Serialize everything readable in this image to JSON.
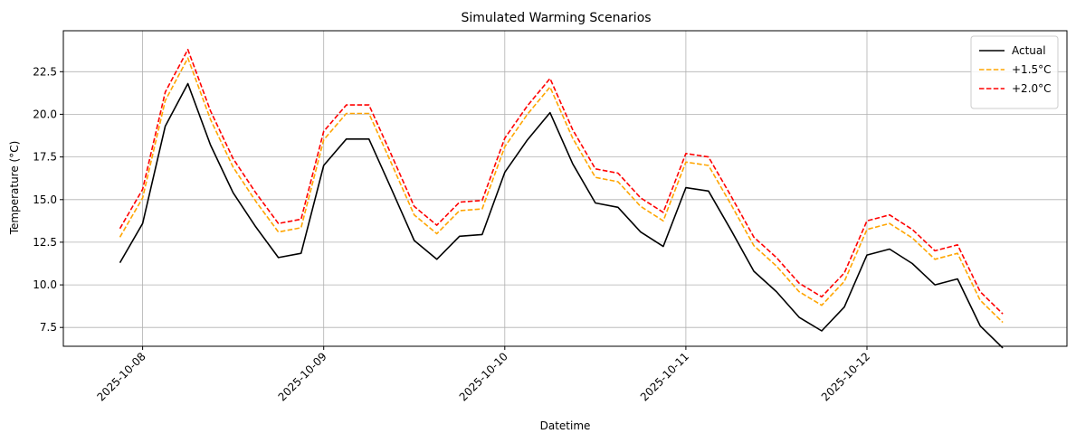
{
  "chart_data": {
    "type": "line",
    "title": "Simulated Warming Scenarios",
    "xlabel": "Datetime",
    "ylabel": "Temperature (°C)",
    "x_ticks": [
      "2025-10-08",
      "2025-10-09",
      "2025-10-10",
      "2025-10-11",
      "2025-10-12"
    ],
    "y_ticks": [
      "7.5",
      "10.0",
      "12.5",
      "15.0",
      "17.5",
      "20.0",
      "22.5"
    ],
    "ylim": [
      6.4,
      24.9
    ],
    "xlim": [
      "2025-10-07 13:30",
      "2025-10-13 02:30"
    ],
    "grid": true,
    "legend_position": "top-right",
    "x": [
      "2025-10-07 21:00",
      "2025-10-08 00:00",
      "2025-10-08 03:00",
      "2025-10-08 06:00",
      "2025-10-08 09:00",
      "2025-10-08 12:00",
      "2025-10-08 15:00",
      "2025-10-08 18:00",
      "2025-10-08 21:00",
      "2025-10-09 00:00",
      "2025-10-09 03:00",
      "2025-10-09 06:00",
      "2025-10-09 09:00",
      "2025-10-09 12:00",
      "2025-10-09 15:00",
      "2025-10-09 18:00",
      "2025-10-09 21:00",
      "2025-10-10 00:00",
      "2025-10-10 03:00",
      "2025-10-10 06:00",
      "2025-10-10 09:00",
      "2025-10-10 12:00",
      "2025-10-10 15:00",
      "2025-10-10 18:00",
      "2025-10-10 21:00",
      "2025-10-11 00:00",
      "2025-10-11 03:00",
      "2025-10-11 06:00",
      "2025-10-11 09:00",
      "2025-10-11 12:00",
      "2025-10-11 15:00",
      "2025-10-11 18:00",
      "2025-10-11 21:00",
      "2025-10-12 00:00",
      "2025-10-12 03:00",
      "2025-10-12 06:00",
      "2025-10-12 09:00",
      "2025-10-12 12:00",
      "2025-10-12 15:00",
      "2025-10-12 18:00"
    ],
    "series": [
      {
        "name": "Actual",
        "color": "#000000",
        "dash": "solid",
        "values": [
          11.3,
          13.6,
          19.3,
          21.8,
          18.2,
          15.4,
          13.4,
          11.6,
          11.85,
          17.0,
          18.55,
          18.55,
          15.6,
          12.6,
          11.5,
          12.85,
          12.95,
          16.6,
          18.5,
          20.1,
          17.1,
          14.8,
          14.55,
          13.1,
          12.25,
          15.7,
          15.5,
          13.2,
          10.8,
          9.6,
          8.1,
          7.3,
          8.7,
          11.75,
          12.1,
          11.25,
          10.0,
          10.35,
          7.6,
          6.3
        ]
      },
      {
        "name": "+1.5°C",
        "color": "#ffa500",
        "dash": "dashed",
        "values": [
          12.8,
          15.1,
          20.8,
          23.3,
          19.7,
          16.9,
          14.9,
          13.1,
          13.35,
          18.5,
          20.05,
          20.05,
          17.1,
          14.1,
          13.0,
          14.35,
          14.45,
          18.1,
          20.0,
          21.6,
          18.6,
          16.3,
          16.05,
          14.6,
          13.75,
          17.2,
          17.0,
          14.7,
          12.3,
          11.1,
          9.6,
          8.8,
          10.2,
          13.25,
          13.6,
          12.75,
          11.5,
          11.85,
          9.1,
          7.8
        ]
      },
      {
        "name": "+2.0°C",
        "color": "#ff0000",
        "dash": "dashed",
        "values": [
          13.3,
          15.6,
          21.3,
          23.8,
          20.2,
          17.4,
          15.4,
          13.6,
          13.85,
          19.0,
          20.55,
          20.55,
          17.6,
          14.6,
          13.5,
          14.85,
          14.95,
          18.6,
          20.5,
          22.1,
          19.1,
          16.8,
          16.55,
          15.1,
          14.25,
          17.7,
          17.5,
          15.2,
          12.8,
          11.6,
          10.1,
          9.3,
          10.7,
          13.75,
          14.1,
          13.25,
          12.0,
          12.35,
          9.6,
          8.3
        ]
      }
    ]
  }
}
